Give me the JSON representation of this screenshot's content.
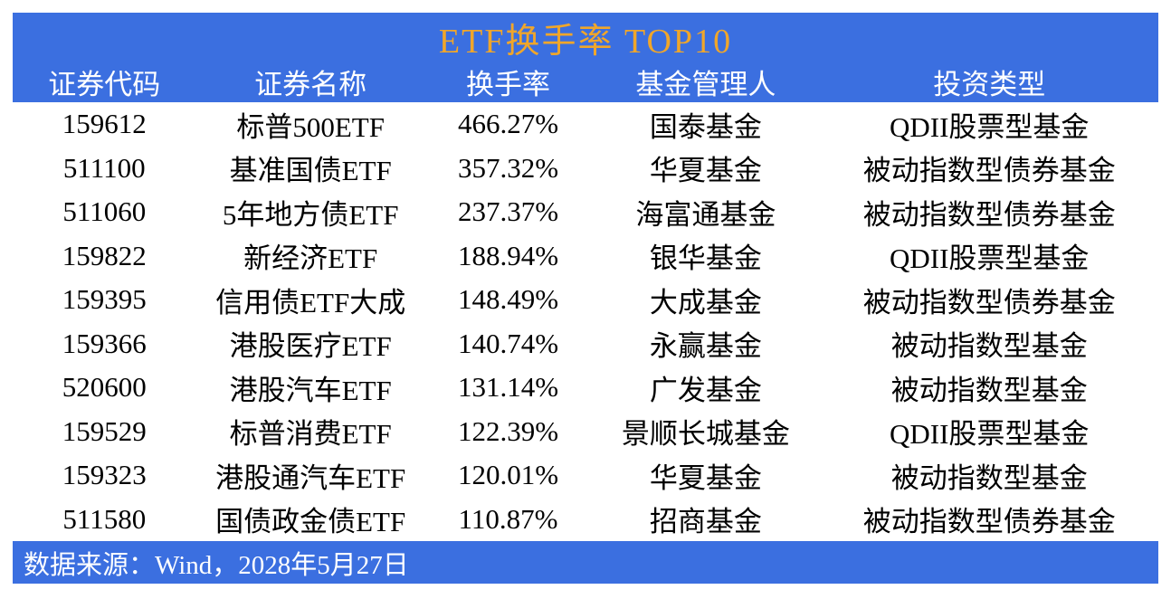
{
  "chart_data": {
    "type": "table",
    "title": "ETF换手率 TOP10",
    "columns": [
      "证券代码",
      "证券名称",
      "换手率",
      "基金管理人",
      "投资类型"
    ],
    "rows": [
      [
        "159612",
        "标普500ETF",
        "466.27%",
        "国泰基金",
        "QDII股票型基金"
      ],
      [
        "511100",
        "基准国债ETF",
        "357.32%",
        "华夏基金",
        "被动指数型债券基金"
      ],
      [
        "511060",
        "5年地方债ETF",
        "237.37%",
        "海富通基金",
        "被动指数型债券基金"
      ],
      [
        "159822",
        "新经济ETF",
        "188.94%",
        "银华基金",
        "QDII股票型基金"
      ],
      [
        "159395",
        "信用债ETF大成",
        "148.49%",
        "大成基金",
        "被动指数型债券基金"
      ],
      [
        "159366",
        "港股医疗ETF",
        "140.74%",
        "永赢基金",
        "被动指数型基金"
      ],
      [
        "520600",
        "港股汽车ETF",
        "131.14%",
        "广发基金",
        "被动指数型基金"
      ],
      [
        "159529",
        "标普消费ETF",
        "122.39%",
        "景顺长城基金",
        "QDII股票型基金"
      ],
      [
        "159323",
        "港股通汽车ETF",
        "120.01%",
        "华夏基金",
        "被动指数型基金"
      ],
      [
        "511580",
        "国债政金债ETF",
        "110.87%",
        "招商基金",
        "被动指数型债券基金"
      ]
    ],
    "turnover_values": [
      466.27,
      357.32,
      237.37,
      188.94,
      148.49,
      140.74,
      131.14,
      122.39,
      120.01,
      110.87
    ]
  },
  "footer": {
    "source_note": "数据来源：Wind，2028年5月27日"
  },
  "colors": {
    "band_blue": "#3B6FE0",
    "title_gold": "#F0A62A",
    "header_text": "#FFFFFF",
    "body_text": "#000000"
  }
}
